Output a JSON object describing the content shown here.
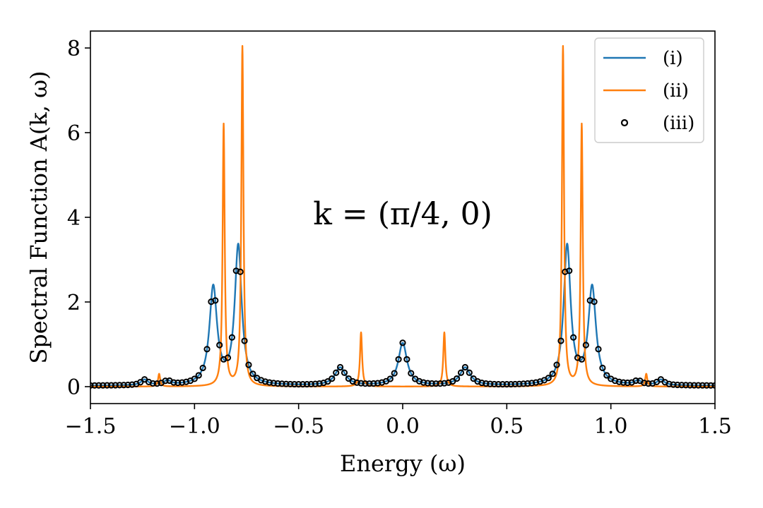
{
  "chart_data": {
    "type": "line",
    "title": "",
    "xlabel": "Energy (ω)",
    "ylabel": "Spectral Function A(k, ω)",
    "xlim": [
      -1.5,
      1.5
    ],
    "ylim": [
      -0.4,
      8.4
    ],
    "xticks": [
      -1.5,
      -1.0,
      -0.5,
      0.0,
      0.5,
      1.0,
      1.5
    ],
    "xtick_labels": [
      "−1.5",
      "−1.0",
      "−0.5",
      "0.0",
      "0.5",
      "1.0",
      "1.5"
    ],
    "yticks": [
      0,
      2,
      4,
      6,
      8
    ],
    "ytick_labels": [
      "0",
      "2",
      "4",
      "6",
      "8"
    ],
    "grid": false,
    "legend_position": "top-right",
    "annotation": {
      "text": "k = (π/4, 0)",
      "x": 0.0,
      "y": 4.0
    },
    "series": [
      {
        "name": "(i)",
        "style": "line",
        "color": "#1f77b4",
        "peaks": [
          {
            "center": -1.24,
            "height": 0.13,
            "width": 0.02
          },
          {
            "center": -1.13,
            "height": 0.1,
            "width": 0.02
          },
          {
            "center": -0.91,
            "height": 2.3,
            "width": 0.022
          },
          {
            "center": -0.79,
            "height": 3.28,
            "width": 0.02
          },
          {
            "center": -0.3,
            "height": 0.42,
            "width": 0.03
          },
          {
            "center": 0.0,
            "height": 1.0,
            "width": 0.025
          },
          {
            "center": 0.3,
            "height": 0.42,
            "width": 0.03
          },
          {
            "center": 0.79,
            "height": 3.28,
            "width": 0.02
          },
          {
            "center": 0.91,
            "height": 2.3,
            "width": 0.022
          },
          {
            "center": 1.13,
            "height": 0.1,
            "width": 0.02
          },
          {
            "center": 1.24,
            "height": 0.13,
            "width": 0.02
          }
        ],
        "baseline": 0.02
      },
      {
        "name": "(ii)",
        "style": "line",
        "color": "#ff7f0e",
        "peaks": [
          {
            "center": -1.17,
            "height": 0.3,
            "width": 0.006
          },
          {
            "center": -0.86,
            "height": 6.18,
            "width": 0.006
          },
          {
            "center": -0.77,
            "height": 8.02,
            "width": 0.006
          },
          {
            "center": -0.2,
            "height": 1.28,
            "width": 0.006
          },
          {
            "center": 0.2,
            "height": 1.28,
            "width": 0.006
          },
          {
            "center": 0.77,
            "height": 8.02,
            "width": 0.006
          },
          {
            "center": 0.86,
            "height": 6.18,
            "width": 0.006
          },
          {
            "center": 1.17,
            "height": 0.3,
            "width": 0.006
          }
        ],
        "baseline": 0.0
      },
      {
        "name": "(iii)",
        "style": "markers",
        "color": "#000000",
        "x_start": -1.5,
        "x_end": 1.5,
        "x_step": 0.02,
        "follows": "(i)"
      }
    ]
  }
}
